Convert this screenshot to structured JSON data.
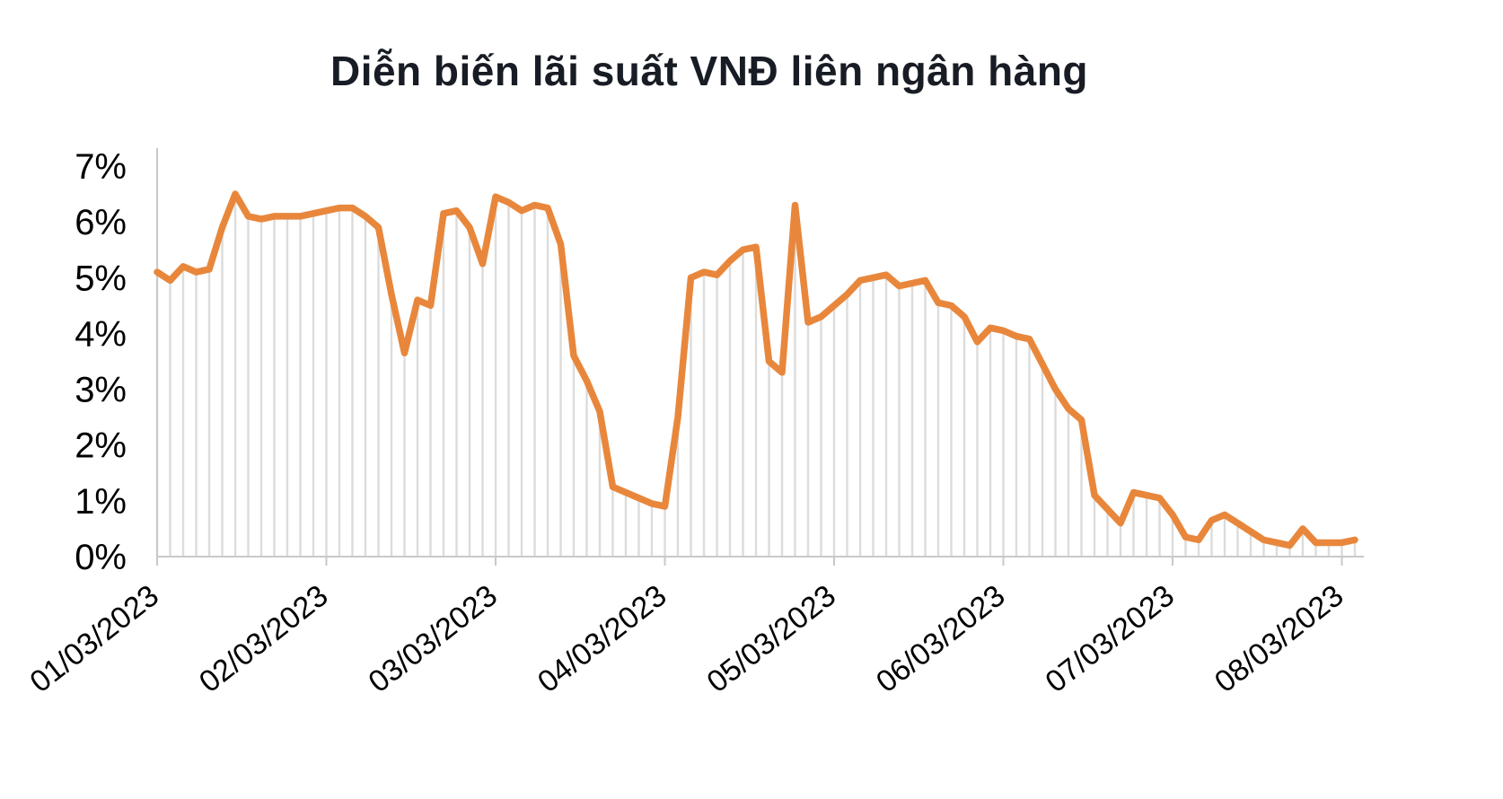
{
  "chart_data": {
    "type": "line",
    "title": "Diễn biến lãi suất VNĐ liên ngân hàng",
    "xlabel": "",
    "ylabel": "",
    "ylim": [
      0,
      7
    ],
    "y_ticks": [
      "0%",
      "1%",
      "2%",
      "3%",
      "4%",
      "5%",
      "6%",
      "7%"
    ],
    "x_tick_labels": [
      "01/03/2023",
      "02/03/2023",
      "03/03/2023",
      "04/03/2023",
      "05/03/2023",
      "06/03/2023",
      "07/03/2023",
      "08/03/2023"
    ],
    "points_per_tick": 13,
    "values_unit": "%",
    "grid": false,
    "legend_position": "none",
    "values": [
      5.1,
      4.95,
      5.2,
      5.1,
      5.15,
      5.9,
      6.5,
      6.1,
      6.05,
      6.1,
      6.1,
      6.1,
      6.15,
      6.2,
      6.25,
      6.25,
      6.1,
      5.9,
      4.7,
      3.65,
      4.6,
      4.5,
      6.15,
      6.2,
      5.9,
      5.25,
      6.45,
      6.35,
      6.2,
      6.3,
      6.25,
      5.6,
      3.6,
      3.15,
      2.6,
      1.25,
      1.15,
      1.05,
      0.95,
      0.9,
      2.5,
      5.0,
      5.1,
      5.05,
      5.3,
      5.5,
      5.55,
      3.5,
      3.3,
      6.3,
      4.2,
      4.3,
      4.5,
      4.7,
      4.95,
      5.0,
      5.05,
      4.85,
      4.9,
      4.95,
      4.55,
      4.5,
      4.3,
      3.85,
      4.1,
      4.05,
      3.95,
      3.9,
      3.45,
      3.0,
      2.65,
      2.45,
      1.1,
      0.85,
      0.6,
      1.15,
      1.1,
      1.05,
      0.75,
      0.35,
      0.3,
      0.65,
      0.75,
      0.6,
      0.45,
      0.3,
      0.25,
      0.2,
      0.5,
      0.25,
      0.25,
      0.25,
      0.3
    ],
    "colors": {
      "line": "#E8873C",
      "dropline": "#DCDCDC",
      "axis": "#C9C9C9",
      "text": "#000000",
      "title": "#181C24"
    }
  }
}
